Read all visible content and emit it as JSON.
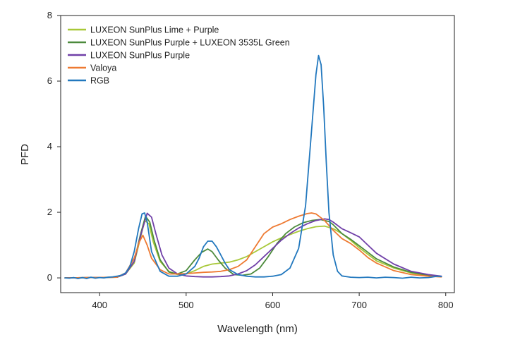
{
  "chart_data": {
    "type": "line",
    "xlabel": "Wavelength (nm)",
    "ylabel": "PFD",
    "xlim": [
      355,
      810
    ],
    "ylim": [
      -0.45,
      8
    ],
    "xticks": [
      400,
      500,
      600,
      700,
      800
    ],
    "yticks": [
      0,
      2,
      4,
      6,
      8
    ],
    "grid": false,
    "legend_position": "top-left",
    "series": [
      {
        "name": "LUXEON SunPlus Lime + Purple",
        "color": "#a8c838",
        "x": [
          360,
          420,
          430,
          440,
          447,
          452,
          457,
          462,
          470,
          480,
          490,
          500,
          510,
          520,
          530,
          540,
          550,
          560,
          570,
          580,
          590,
          600,
          610,
          620,
          630,
          640,
          650,
          660,
          670,
          680,
          690,
          700,
          710,
          720,
          740,
          760,
          780,
          795
        ],
        "values": [
          0,
          0.02,
          0.12,
          0.45,
          1.2,
          1.75,
          1.65,
          1.1,
          0.5,
          0.2,
          0.1,
          0.12,
          0.22,
          0.35,
          0.42,
          0.45,
          0.48,
          0.55,
          0.65,
          0.8,
          0.95,
          1.1,
          1.22,
          1.32,
          1.42,
          1.5,
          1.56,
          1.58,
          1.5,
          1.35,
          1.15,
          0.92,
          0.72,
          0.52,
          0.3,
          0.15,
          0.07,
          0.04
        ]
      },
      {
        "name": "LUXEON SunPlus Purple + LUXEON 3535L Green",
        "color": "#4c8a3c",
        "x": [
          360,
          420,
          430,
          440,
          447,
          453,
          458,
          463,
          470,
          480,
          490,
          500,
          510,
          518,
          525,
          530,
          537,
          545,
          555,
          565,
          575,
          585,
          595,
          605,
          615,
          625,
          635,
          645,
          655,
          665,
          670,
          680,
          690,
          700,
          710,
          720,
          740,
          760,
          780,
          795
        ],
        "values": [
          0,
          0.02,
          0.12,
          0.5,
          1.3,
          1.88,
          1.7,
          1.15,
          0.55,
          0.18,
          0.12,
          0.22,
          0.55,
          0.78,
          0.88,
          0.8,
          0.55,
          0.3,
          0.1,
          0.08,
          0.12,
          0.3,
          0.65,
          1.05,
          1.35,
          1.55,
          1.68,
          1.75,
          1.78,
          1.72,
          1.62,
          1.35,
          1.18,
          0.98,
          0.78,
          0.58,
          0.33,
          0.17,
          0.08,
          0.04
        ]
      },
      {
        "name": "LUXEON SunPlus Purple",
        "color": "#7040a8",
        "x": [
          360,
          420,
          430,
          440,
          448,
          455,
          460,
          465,
          472,
          480,
          490,
          500,
          510,
          520,
          530,
          540,
          550,
          560,
          570,
          580,
          590,
          600,
          610,
          620,
          630,
          640,
          650,
          660,
          665,
          670,
          680,
          690,
          700,
          710,
          720,
          740,
          760,
          780,
          795
        ],
        "values": [
          0,
          0.02,
          0.12,
          0.5,
          1.35,
          1.97,
          1.85,
          1.35,
          0.7,
          0.3,
          0.12,
          0.06,
          0.04,
          0.03,
          0.03,
          0.04,
          0.06,
          0.12,
          0.22,
          0.4,
          0.65,
          0.9,
          1.15,
          1.35,
          1.52,
          1.65,
          1.75,
          1.8,
          1.78,
          1.7,
          1.5,
          1.38,
          1.25,
          1.0,
          0.75,
          0.42,
          0.2,
          0.1,
          0.05
        ]
      },
      {
        "name": "Valoya",
        "color": "#ee7a32",
        "x": [
          360,
          420,
          430,
          440,
          446,
          450,
          455,
          460,
          470,
          480,
          490,
          500,
          510,
          520,
          530,
          540,
          550,
          560,
          570,
          580,
          590,
          600,
          610,
          620,
          630,
          640,
          645,
          650,
          660,
          670,
          680,
          690,
          700,
          710,
          720,
          740,
          760,
          780,
          795
        ],
        "values": [
          0,
          0.02,
          0.15,
          0.6,
          1.1,
          1.3,
          1.0,
          0.6,
          0.25,
          0.12,
          0.12,
          0.13,
          0.15,
          0.17,
          0.18,
          0.2,
          0.25,
          0.35,
          0.55,
          0.95,
          1.35,
          1.55,
          1.65,
          1.78,
          1.88,
          1.96,
          1.98,
          1.95,
          1.75,
          1.45,
          1.2,
          1.05,
          0.85,
          0.62,
          0.45,
          0.22,
          0.1,
          0.05,
          0.03
        ]
      },
      {
        "name": "RGB",
        "color": "#2278be",
        "x": [
          360,
          365,
          370,
          375,
          380,
          385,
          390,
          395,
          400,
          405,
          410,
          415,
          420,
          425,
          430,
          435,
          440,
          445,
          449,
          452,
          455,
          460,
          470,
          480,
          490,
          500,
          510,
          515,
          520,
          525,
          530,
          535,
          540,
          545,
          550,
          560,
          570,
          580,
          590,
          600,
          610,
          620,
          630,
          638,
          645,
          650,
          653,
          656,
          659,
          662,
          665,
          670,
          675,
          680,
          690,
          700,
          710,
          720,
          730,
          740,
          750,
          760,
          770,
          780,
          785,
          790,
          795
        ],
        "values": [
          0,
          -0.01,
          0.01,
          -0.02,
          0.01,
          -0.02,
          0.02,
          -0.01,
          0.01,
          0.0,
          0.02,
          0.03,
          0.05,
          0.08,
          0.15,
          0.35,
          0.8,
          1.5,
          1.95,
          1.98,
          1.7,
          0.8,
          0.2,
          0.05,
          0.05,
          0.12,
          0.35,
          0.6,
          0.95,
          1.12,
          1.12,
          0.95,
          0.7,
          0.45,
          0.25,
          0.1,
          0.05,
          0.03,
          0.03,
          0.05,
          0.1,
          0.3,
          0.9,
          2.2,
          4.5,
          6.2,
          6.78,
          6.5,
          5.2,
          3.5,
          2.0,
          0.7,
          0.2,
          0.06,
          0.02,
          0.01,
          0.02,
          0.0,
          0.02,
          0.01,
          -0.01,
          0.02,
          0.0,
          0.01,
          0.03,
          0.05,
          0.04
        ]
      }
    ]
  }
}
